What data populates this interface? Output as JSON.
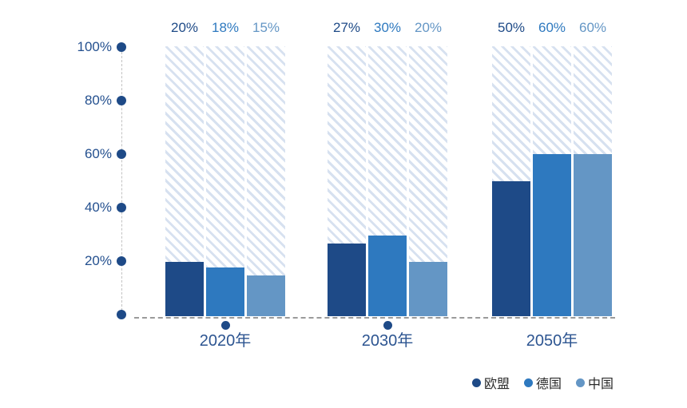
{
  "chart_data": {
    "type": "bar",
    "title": "",
    "value_suffix": "%",
    "categories": [
      "2020年",
      "2030年",
      "2050年"
    ],
    "series": [
      {
        "name": "欧盟",
        "color": "#1e4a87",
        "values": [
          20,
          27,
          50
        ],
        "labels": [
          "20%",
          "27%",
          "50%"
        ]
      },
      {
        "name": "德国",
        "color": "#2e79bf",
        "values": [
          18,
          30,
          60
        ],
        "labels": [
          "18%",
          "30%",
          "60%"
        ]
      },
      {
        "name": "中国",
        "color": "#6496c5",
        "values": [
          15,
          20,
          60
        ],
        "labels": [
          "15%",
          "20%",
          "60%"
        ]
      }
    ],
    "y_axis": {
      "ticks": [
        {
          "value": 100,
          "label": "100%"
        },
        {
          "value": 80,
          "label": "80%"
        },
        {
          "value": 60,
          "label": "60%"
        },
        {
          "value": 40,
          "label": "40%"
        },
        {
          "value": 20,
          "label": "20%"
        },
        {
          "value": 0,
          "label": ""
        }
      ]
    },
    "ylim": [
      0,
      100
    ],
    "grid": false,
    "legend_position": "bottom-right",
    "colors": {
      "hatch": "#d7e1f0",
      "axis_label": "#24508f",
      "category_label": "#2d5591",
      "tick_dot": "#1e4a87",
      "legend_text": "#2b2b2b"
    }
  }
}
